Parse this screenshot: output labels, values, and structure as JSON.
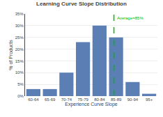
{
  "chart_data": {
    "type": "bar",
    "title": "Learning Curve Slope Distribution",
    "xlabel": "Experience Curve Slope",
    "ylabel": "% of Products",
    "categories": [
      "60-64",
      "65-69",
      "70-74",
      "75-79",
      "80-84",
      "85-89",
      "90-94",
      "95+"
    ],
    "values": [
      3,
      3,
      10,
      23,
      30,
      25,
      6,
      1
    ],
    "color": "#5b7fb5",
    "ylim": [
      0,
      35
    ],
    "yticks": [
      {
        "value": 0,
        "label": "0%"
      },
      {
        "value": 5,
        "label": "5%"
      },
      {
        "value": 10,
        "label": "10%"
      },
      {
        "value": 15,
        "label": "15%"
      },
      {
        "value": 20,
        "label": "20%"
      },
      {
        "value": 25,
        "label": "25%"
      },
      {
        "value": 30,
        "label": "30%"
      },
      {
        "value": 35,
        "label": "35%"
      }
    ],
    "grid": true,
    "reference_line": {
      "x": 4.87,
      "label": "Average=85%",
      "color": "#00bb00",
      "line_style": "dash"
    }
  }
}
